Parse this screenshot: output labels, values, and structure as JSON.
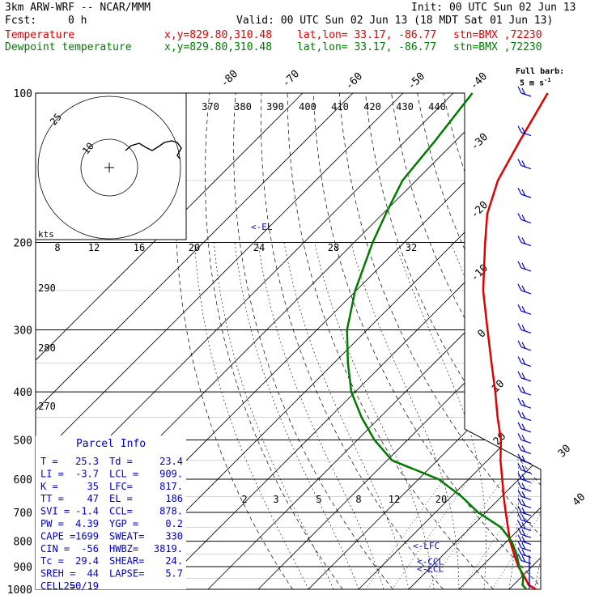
{
  "header": {
    "model": "3km ARW-WRF -- NCAR/MMM",
    "init": "Init: 00 UTC Sun 02 Jun 13",
    "fcst_label": "Fcst:",
    "fcst_value": "0 h",
    "valid": "Valid: 00 UTC Sun 02 Jun 13 (18 MDT Sat 01 Jun 13)",
    "temp_label": "Temperature",
    "dew_label": "Dewpoint temperature",
    "xy": "x,y=829.80,310.48",
    "latlon": "lat,lon= 33.17, -86.77",
    "stn": "stn=BMX ,72230",
    "barb_legend_1": "Full barb:",
    "barb_legend_2": "5 m s",
    "barb_legend_sup": "-1"
  },
  "colors": {
    "temperature": "#e00000",
    "dewpoint": "#007a00",
    "wind": "#0000c8",
    "grid": "#000000"
  },
  "chart_data": {
    "type": "line",
    "pressure_levels": [
      100,
      200,
      300,
      400,
      500,
      600,
      700,
      800,
      900,
      1000
    ],
    "isotherm_labels": [
      "-80",
      "-70",
      "-60",
      "-50",
      "-40",
      "-30",
      "-20",
      "-10",
      "0",
      "10",
      "20",
      "30",
      "40"
    ],
    "theta_labels": [
      "370",
      "380",
      "390",
      "400",
      "410",
      "420",
      "430",
      "440"
    ],
    "dry_adiabat_labels": [
      "290",
      "280",
      "270"
    ],
    "mixing_ratio_labels": [
      "2",
      "3",
      "5",
      "8",
      "12",
      "20"
    ],
    "hodograph": {
      "units": "kts",
      "ring_labels": [
        "25",
        "10"
      ],
      "speed_labels": [
        "8",
        "12",
        "16",
        "20",
        "24",
        "28",
        "32"
      ]
    },
    "levels_marked": [
      {
        "label": "<-EL",
        "p": 186
      },
      {
        "label": "<-LFC",
        "p": 817
      },
      {
        "label": "<-CCL",
        "p": 878
      },
      {
        "label": "<-LCL",
        "p": 909
      }
    ],
    "series": [
      {
        "name": "Temperature",
        "p": [
          1000,
          980,
          950,
          925,
          900,
          850,
          800,
          750,
          700,
          650,
          600,
          550,
          500,
          450,
          400,
          350,
          300,
          250,
          200,
          175,
          150,
          125,
          100
        ],
        "t": [
          25.3,
          23.0,
          21.0,
          19.2,
          17.3,
          14.0,
          10.6,
          7.4,
          4.0,
          0.4,
          -3.3,
          -7.4,
          -11.4,
          -16.6,
          -22.1,
          -28.6,
          -36.0,
          -44.7,
          -53.9,
          -59.2,
          -63.7,
          -67.2,
          -71.2
        ]
      },
      {
        "name": "Dewpoint temperature",
        "p": [
          1000,
          980,
          950,
          925,
          900,
          850,
          800,
          750,
          700,
          650,
          600,
          550,
          500,
          450,
          400,
          350,
          300,
          250,
          200,
          175,
          150,
          125,
          100
        ],
        "t": [
          23.4,
          21.8,
          20.6,
          19.1,
          17.5,
          14.5,
          10.9,
          6.0,
          -1.5,
          -8.0,
          -16.0,
          -29.0,
          -36.6,
          -43.7,
          -50.8,
          -57.2,
          -64.0,
          -70.2,
          -76.3,
          -79.4,
          -82.7,
          -84.1,
          -86.2
        ]
      }
    ],
    "wind_barbs_p": [
      1000,
      975,
      950,
      925,
      900,
      875,
      850,
      825,
      800,
      775,
      750,
      725,
      700,
      675,
      650,
      625,
      600,
      575,
      550,
      525,
      500,
      475,
      450,
      425,
      400,
      375,
      350,
      325,
      300,
      275,
      250,
      225,
      200,
      180,
      160,
      140,
      120,
      100
    ]
  },
  "parcel": {
    "title": "Parcel Info",
    "rows": [
      [
        "T  =",
        "25.3",
        "Td =",
        "23.4"
      ],
      [
        "LI =",
        "-3.7",
        "LCL =",
        "909."
      ],
      [
        "K  =",
        "35",
        "LFC=",
        "817."
      ],
      [
        "TT =",
        "47",
        "EL =",
        "186"
      ],
      [
        "SVI =",
        "-1.4",
        "CCL=",
        "878."
      ],
      [
        "PW =",
        "4.39",
        "YGP =",
        "0.2"
      ],
      [
        "CAPE =",
        "1699",
        "SWEAT=",
        "330"
      ],
      [
        "CIN =",
        "-56",
        "HWBZ=",
        "3819."
      ],
      [
        "Tc =",
        "29.4",
        "SHEAR=",
        "24."
      ],
      [
        "SREH =",
        "44",
        "LAPSE=",
        "5.7"
      ],
      [
        "CELL =",
        "250/19",
        "",
        ""
      ]
    ]
  }
}
